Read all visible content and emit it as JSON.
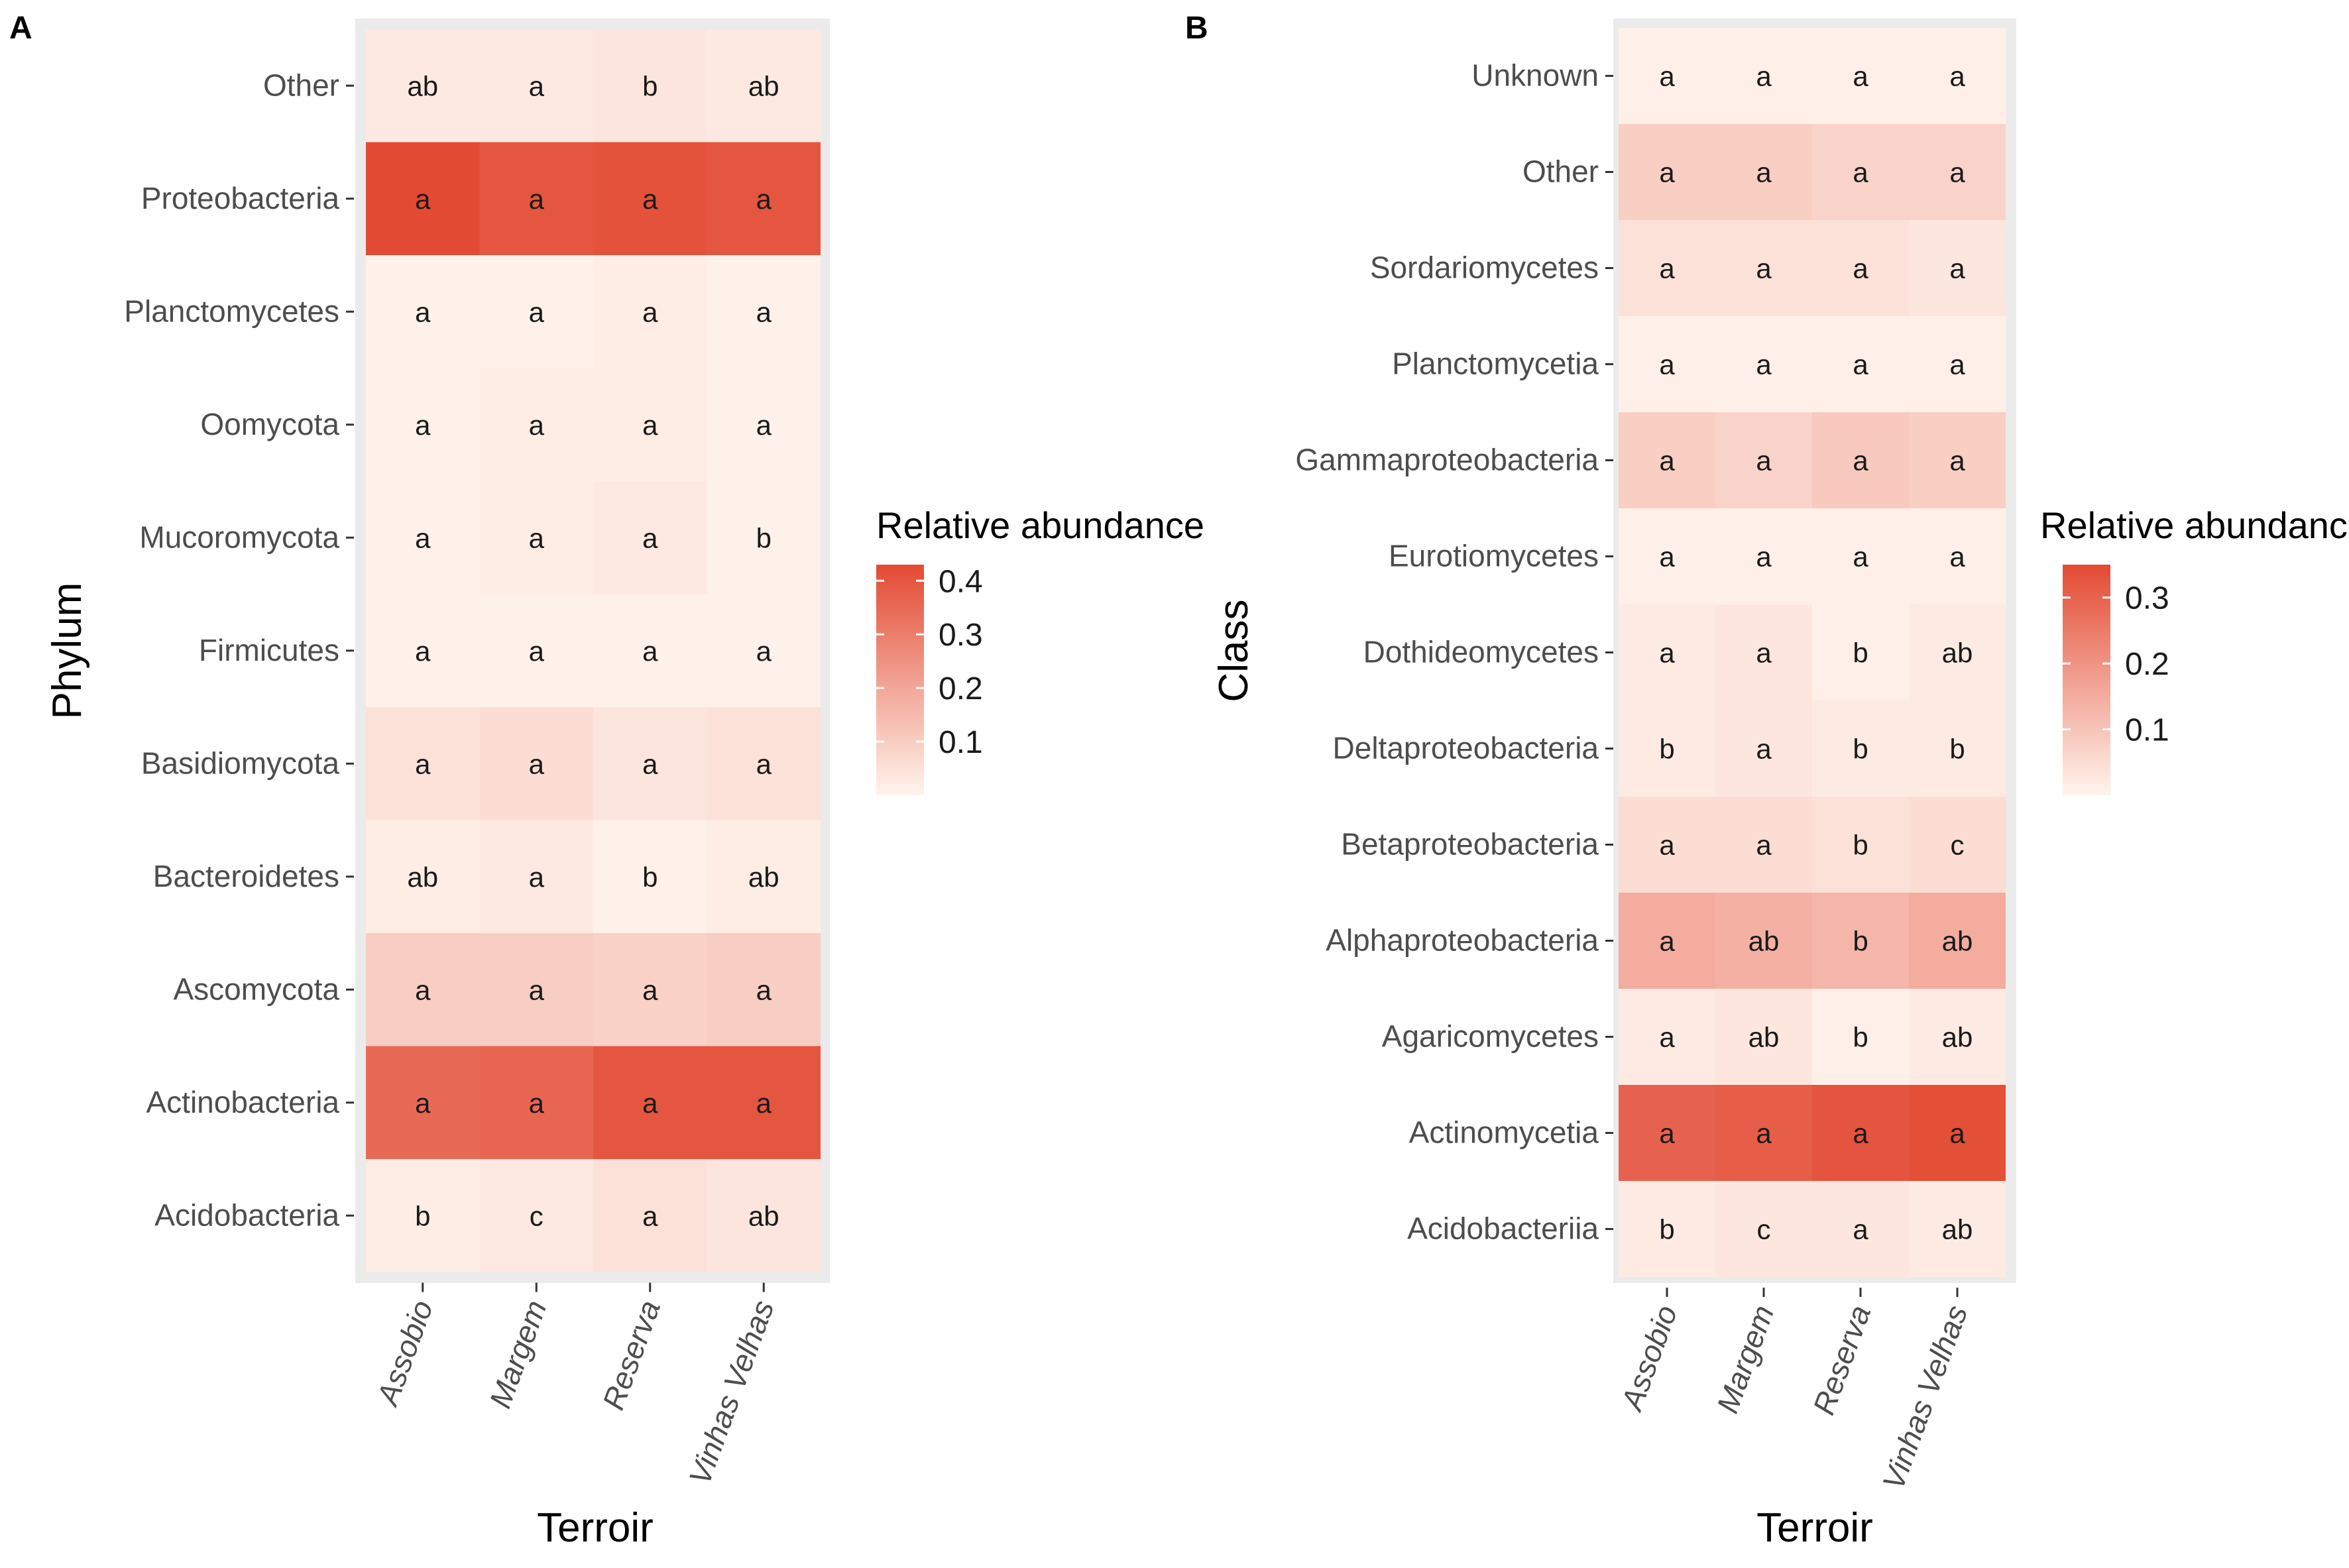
{
  "colors": {
    "low": "#fff5ee",
    "high": "#e34a33",
    "panel_bg": "#ebebeb",
    "text": "#1a1a1a",
    "axis_text": "#4d4d4d"
  },
  "chart_data": [
    {
      "panel_label": "A",
      "type": "heatmap",
      "title": "",
      "xlabel": "Terroir",
      "ylabel": "Phylum",
      "x": [
        "Assobio",
        "Margem",
        "Reserva",
        "Vinhas Velhas"
      ],
      "y": [
        "Other",
        "Proteobacteria",
        "Planctomycetes",
        "Oomycota",
        "Mucoromycota",
        "Firmicutes",
        "Basidiomycota",
        "Bacteroidetes",
        "Ascomycota",
        "Actinobacteria",
        "Acidobacteria"
      ],
      "values": [
        [
          0.03,
          0.03,
          0.04,
          0.03
        ],
        [
          0.43,
          0.4,
          0.41,
          0.4
        ],
        [
          0.01,
          0.01,
          0.02,
          0.01
        ],
        [
          0.01,
          0.02,
          0.02,
          0.01
        ],
        [
          0.01,
          0.02,
          0.03,
          0.01
        ],
        [
          0.01,
          0.01,
          0.01,
          0.01
        ],
        [
          0.05,
          0.06,
          0.04,
          0.05
        ],
        [
          0.02,
          0.03,
          0.01,
          0.02
        ],
        [
          0.1,
          0.1,
          0.09,
          0.1
        ],
        [
          0.35,
          0.36,
          0.4,
          0.4
        ],
        [
          0.02,
          0.03,
          0.05,
          0.04
        ]
      ],
      "labels": [
        [
          "ab",
          "a",
          "b",
          "ab"
        ],
        [
          "a",
          "a",
          "a",
          "a"
        ],
        [
          "a",
          "a",
          "a",
          "a"
        ],
        [
          "a",
          "a",
          "a",
          "a"
        ],
        [
          "a",
          "a",
          "a",
          "b"
        ],
        [
          "a",
          "a",
          "a",
          "a"
        ],
        [
          "a",
          "a",
          "a",
          "a"
        ],
        [
          "ab",
          "a",
          "b",
          "ab"
        ],
        [
          "a",
          "a",
          "a",
          "a"
        ],
        [
          "a",
          "a",
          "a",
          "a"
        ],
        [
          "b",
          "c",
          "a",
          "ab"
        ]
      ],
      "legend": {
        "title": "Relative abundance",
        "ticks": [
          0.1,
          0.2,
          0.3,
          0.4
        ],
        "tick_labels": [
          "0.1",
          "0.2",
          "0.3",
          "0.4"
        ],
        "range": [
          0.0,
          0.43
        ]
      }
    },
    {
      "panel_label": "B",
      "type": "heatmap",
      "title": "",
      "xlabel": "Terroir",
      "ylabel": "Class",
      "x": [
        "Assobio",
        "Margem",
        "Reserva",
        "Vinhas Velhas"
      ],
      "y": [
        "Unknown",
        "Other",
        "Sordariomycetes",
        "Planctomycetia",
        "Gammaproteobacteria",
        "Eurotiomycetes",
        "Dothideomycetes",
        "Deltaproteobacteria",
        "Betaproteobacteria",
        "Alphaproteobacteria",
        "Agaricomycetes",
        "Actinomycetia",
        "Acidobacteriia"
      ],
      "values": [
        [
          0.01,
          0.01,
          0.01,
          0.01
        ],
        [
          0.08,
          0.08,
          0.07,
          0.07
        ],
        [
          0.04,
          0.04,
          0.04,
          0.03
        ],
        [
          0.01,
          0.01,
          0.01,
          0.01
        ],
        [
          0.08,
          0.07,
          0.09,
          0.08
        ],
        [
          0.01,
          0.01,
          0.01,
          0.01
        ],
        [
          0.02,
          0.03,
          0.01,
          0.02
        ],
        [
          0.02,
          0.03,
          0.02,
          0.02
        ],
        [
          0.05,
          0.05,
          0.04,
          0.05
        ],
        [
          0.15,
          0.14,
          0.13,
          0.15
        ],
        [
          0.02,
          0.03,
          0.01,
          0.02
        ],
        [
          0.3,
          0.31,
          0.33,
          0.34
        ],
        [
          0.02,
          0.03,
          0.03,
          0.02
        ]
      ],
      "labels": [
        [
          "a",
          "a",
          "a",
          "a"
        ],
        [
          "a",
          "a",
          "a",
          "a"
        ],
        [
          "a",
          "a",
          "a",
          "a"
        ],
        [
          "a",
          "a",
          "a",
          "a"
        ],
        [
          "a",
          "a",
          "a",
          "a"
        ],
        [
          "a",
          "a",
          "a",
          "a"
        ],
        [
          "a",
          "a",
          "b",
          "ab"
        ],
        [
          "b",
          "a",
          "b",
          "b"
        ],
        [
          "a",
          "a",
          "b",
          "c"
        ],
        [
          "a",
          "ab",
          "b",
          "ab"
        ],
        [
          "a",
          "ab",
          "b",
          "ab"
        ],
        [
          "a",
          "a",
          "a",
          "a"
        ],
        [
          "b",
          "c",
          "a",
          "ab"
        ]
      ],
      "legend": {
        "title": "Relative abundance",
        "ticks": [
          0.1,
          0.2,
          0.3
        ],
        "tick_labels": [
          "0.1",
          "0.2",
          "0.3"
        ],
        "range": [
          0.0,
          0.35
        ]
      }
    }
  ]
}
